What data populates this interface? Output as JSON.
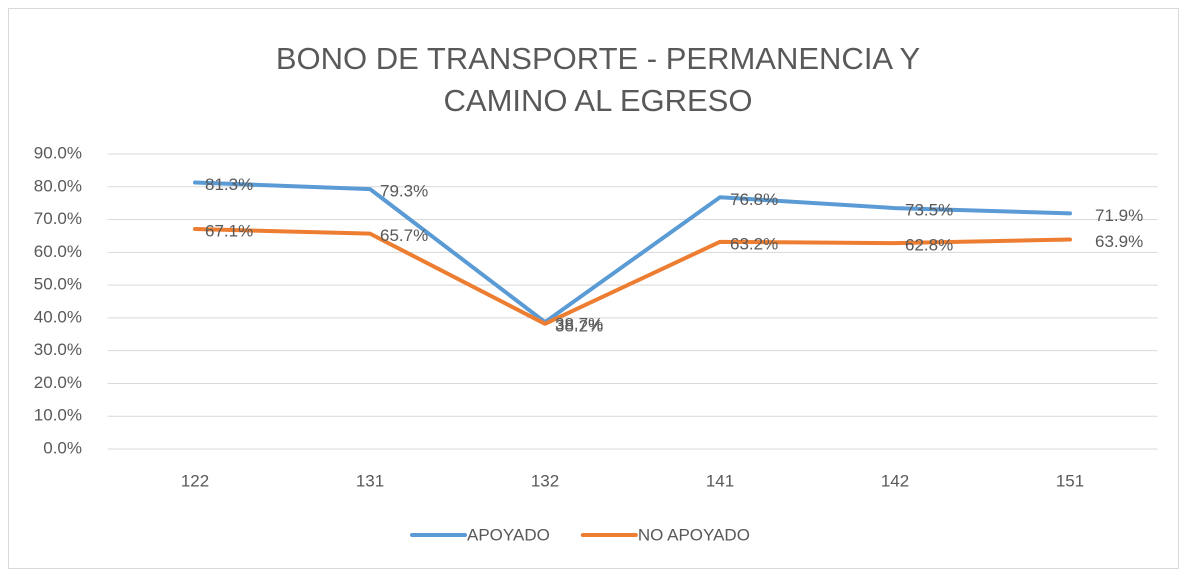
{
  "chart_data": {
    "type": "line",
    "title": "BONO DE TRANSPORTE - PERMANENCIA Y CAMINO AL EGRESO",
    "categories": [
      "122",
      "131",
      "132",
      "141",
      "142",
      "151"
    ],
    "series": [
      {
        "name": "APOYADO",
        "color": "#5b9bd5",
        "values": [
          81.3,
          79.3,
          38.7,
          76.8,
          73.5,
          71.9
        ],
        "value_labels": [
          "81.3%",
          "79.3%",
          "38.7%",
          "76.8%",
          "73.5%",
          "71.9%"
        ]
      },
      {
        "name": "NO APOYADO",
        "color": "#ed7d31",
        "values": [
          67.1,
          65.7,
          38.2,
          63.2,
          62.8,
          63.9
        ],
        "value_labels": [
          "67.1%",
          "65.7%",
          "38.2%",
          "63.2%",
          "62.8%",
          "63.9%"
        ]
      }
    ],
    "ylim": [
      0,
      90
    ],
    "yticks": [
      {
        "value": 0,
        "label": "0.0%"
      },
      {
        "value": 10,
        "label": "10.0%"
      },
      {
        "value": 20,
        "label": "20.0%"
      },
      {
        "value": 30,
        "label": "30.0%"
      },
      {
        "value": 40,
        "label": "40.0%"
      },
      {
        "value": 50,
        "label": "50.0%"
      },
      {
        "value": 60,
        "label": "60.0%"
      },
      {
        "value": 70,
        "label": "70.0%"
      },
      {
        "value": 80,
        "label": "80.0%"
      },
      {
        "value": 90,
        "label": "90.0%"
      }
    ],
    "grid": true,
    "legend": "bottom"
  }
}
